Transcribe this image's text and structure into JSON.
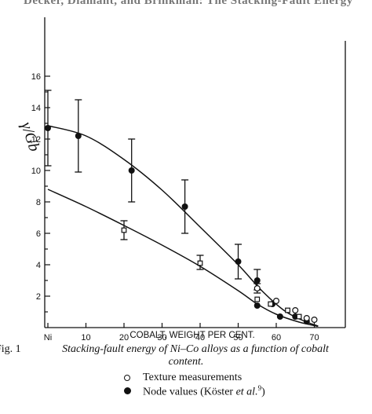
{
  "header_fragment": "Decker, Diamant, and Brinkman: The Stacking-Fault Energy",
  "caption": {
    "label": "Fig. 1",
    "line1": "Stacking-fault energy of Ni–Co alloys as a function of cobalt",
    "line2": "content."
  },
  "legend": [
    {
      "symbol": "open-circle",
      "text": "Texture measurements",
      "superscript": ""
    },
    {
      "symbol": "filled-circle",
      "text": "Node values (Köster ",
      "text_italic": "et al.",
      "superscript": "9",
      "text_after": ")"
    }
  ],
  "chart_data": {
    "type": "scatter",
    "xlabel": "COBALT, WEIGHT PER CENT.",
    "ylabel": "γ/Gb",
    "xlim": [
      0,
      75
    ],
    "ylim": [
      0,
      16
    ],
    "x_tick_labels": [
      "Ni",
      "10",
      "20",
      "30",
      "40",
      "50",
      "60",
      "70"
    ],
    "x_tick_values": [
      0,
      10,
      20,
      30,
      40,
      50,
      60,
      70
    ],
    "y_tick_labels": [
      "2",
      "4",
      "6",
      "8",
      "10",
      "12",
      "14",
      "16"
    ],
    "y_tick_values": [
      2,
      4,
      6,
      8,
      10,
      12,
      14,
      16
    ],
    "series": [
      {
        "marker": "filled-circle",
        "points": [
          {
            "x": 0,
            "y": 12.7,
            "err_low": 10.3,
            "err_high": 15.1
          },
          {
            "x": 8,
            "y": 12.2,
            "err_low": 9.9,
            "err_high": 14.5
          },
          {
            "x": 22,
            "y": 10.0,
            "err_low": 8.0,
            "err_high": 12.0
          },
          {
            "x": 36,
            "y": 7.7,
            "err_low": 6.0,
            "err_high": 9.4
          },
          {
            "x": 50,
            "y": 4.2,
            "err_low": 3.1,
            "err_high": 5.3
          },
          {
            "x": 55,
            "y": 3.0,
            "err_low": 2.4,
            "err_high": 3.7
          },
          {
            "x": 55,
            "y": 1.4
          },
          {
            "x": 59,
            "y": 1.5
          },
          {
            "x": 61,
            "y": 0.7
          },
          {
            "x": 65,
            "y": 0.7
          },
          {
            "x": 68,
            "y": 0.4
          }
        ]
      },
      {
        "marker": "open-square",
        "points": [
          {
            "x": 20,
            "y": 6.2,
            "err_low": 5.6,
            "err_high": 6.8
          },
          {
            "x": 40,
            "y": 4.1,
            "err_low": 3.7,
            "err_high": 4.6
          },
          {
            "x": 55,
            "y": 1.8
          },
          {
            "x": 58.5,
            "y": 1.5
          },
          {
            "x": 63,
            "y": 1.1
          },
          {
            "x": 66,
            "y": 0.7
          }
        ]
      },
      {
        "marker": "open-circle",
        "points": [
          {
            "x": 55,
            "y": 2.5,
            "err_low": 2.2,
            "err_high": 2.8
          },
          {
            "x": 60,
            "y": 1.7
          },
          {
            "x": 65,
            "y": 1.1
          },
          {
            "x": 68,
            "y": 0.6
          },
          {
            "x": 70,
            "y": 0.5
          }
        ]
      }
    ],
    "curves": [
      {
        "points": [
          [
            0,
            12.85
          ],
          [
            10,
            12.2
          ],
          [
            20,
            10.7
          ],
          [
            30,
            8.75
          ],
          [
            40,
            6.4
          ],
          [
            50,
            4.0
          ],
          [
            56,
            2.4
          ],
          [
            62,
            1.1
          ],
          [
            67,
            0.45
          ],
          [
            71,
            0.1
          ]
        ]
      },
      {
        "points": [
          [
            0,
            8.8
          ],
          [
            10,
            7.7
          ],
          [
            20,
            6.5
          ],
          [
            30,
            5.25
          ],
          [
            40,
            3.9
          ],
          [
            50,
            2.35
          ],
          [
            55,
            1.5
          ],
          [
            60,
            0.85
          ],
          [
            66,
            0.35
          ],
          [
            71,
            0.08
          ]
        ]
      }
    ]
  }
}
